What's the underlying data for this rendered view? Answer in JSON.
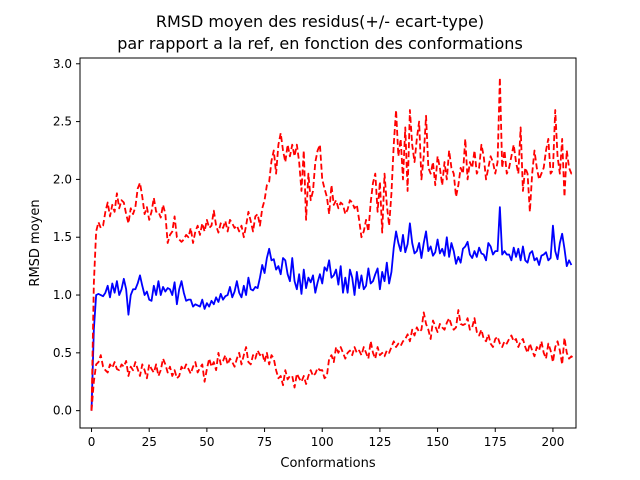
{
  "chart_data": {
    "type": "line",
    "title": [
      "RMSD moyen des residus(+/- ecart-type)",
      "par rapport a la ref, en fonction des conformations"
    ],
    "xlabel": "Conformations",
    "ylabel": "RMSD moyen",
    "xlim": [
      -5,
      210
    ],
    "ylim": [
      -0.15,
      3.05
    ],
    "xticks": [
      0,
      25,
      50,
      75,
      100,
      125,
      150,
      175,
      200
    ],
    "yticks": [
      "0.0",
      "0.5",
      "1.0",
      "1.5",
      "2.0",
      "2.5",
      "3.0"
    ],
    "grid": false,
    "x": {
      "start": 0,
      "end": 200,
      "step": 1
    },
    "series": [
      {
        "role": "mean",
        "color": "#0000ff",
        "style": "solid",
        "values": [
          0.0,
          0.7,
          1.0,
          1.01,
          1.0,
          0.99,
          1.02,
          1.08,
          0.98,
          1.1,
          1.02,
          1.12,
          1.0,
          1.05,
          1.14,
          1.05,
          0.83,
          1.0,
          1.05,
          1.05,
          1.1,
          1.17,
          1.08,
          1.0,
          1.03,
          0.96,
          0.95,
          1.08,
          1.0,
          1.12,
          1.0,
          1.07,
          1.03,
          1.06,
          1.05,
          1.0,
          1.11,
          0.92,
          1.05,
          1.12,
          1.02,
          0.95,
          0.96,
          0.96,
          0.9,
          0.92,
          0.91,
          0.9,
          0.96,
          0.88,
          0.93,
          0.9,
          0.95,
          0.92,
          0.98,
          0.94,
          1.01,
          0.96,
          0.99,
          1.0,
          1.07,
          0.98,
          1.03,
          1.12,
          1.02,
          0.98,
          1.08,
          1.0,
          1.15,
          1.05,
          1.04,
          1.07,
          1.06,
          1.15,
          1.26,
          1.19,
          1.32,
          1.4,
          1.3,
          1.31,
          1.22,
          1.25,
          1.18,
          1.32,
          1.3,
          1.18,
          1.12,
          1.32,
          1.12,
          1.05,
          1.18,
          1.01,
          1.22,
          1.06,
          1.15,
          1.11,
          1.17,
          1.02,
          1.11,
          1.18,
          1.1,
          1.24,
          1.21,
          1.3,
          1.15,
          1.17,
          1.22,
          1.09,
          1.25,
          1.02,
          1.15,
          1.02,
          1.22,
          1.15,
          1.0,
          1.2,
          1.06,
          1.17,
          1.05,
          1.08,
          1.23,
          1.1,
          1.12,
          1.18,
          1.23,
          1.05,
          1.2,
          1.12,
          1.28,
          1.1,
          1.2,
          1.41,
          1.55,
          1.45,
          1.38,
          1.52,
          1.37,
          1.44,
          1.62,
          1.45,
          1.36,
          1.38,
          1.45,
          1.32,
          1.45,
          1.55,
          1.38,
          1.42,
          1.34,
          1.37,
          1.48,
          1.36,
          1.4,
          1.34,
          1.5,
          1.33,
          1.45,
          1.38,
          1.27,
          1.33,
          1.28,
          1.4,
          1.42,
          1.46,
          1.35,
          1.32,
          1.38,
          1.33,
          1.41,
          1.36,
          1.35,
          1.3,
          1.45,
          1.42,
          1.35,
          1.38,
          1.38,
          1.76,
          1.35,
          1.38,
          1.35,
          1.35,
          1.3,
          1.41,
          1.33,
          1.4,
          1.3,
          1.42,
          1.3,
          1.28,
          1.36,
          1.38,
          1.3,
          1.32,
          1.26,
          1.34,
          1.35,
          1.37,
          1.3,
          1.32,
          1.6,
          1.38,
          1.31,
          1.45,
          1.53,
          1.4,
          1.25,
          1.3,
          1.26
        ]
      },
      {
        "role": "mean + std",
        "color": "#ff0000",
        "style": "dashed",
        "values": [
          0.0,
          1.1,
          1.55,
          1.63,
          1.58,
          1.6,
          1.72,
          1.8,
          1.68,
          1.78,
          1.72,
          1.88,
          1.75,
          1.82,
          1.8,
          1.7,
          1.62,
          1.75,
          1.7,
          1.76,
          1.92,
          1.97,
          1.85,
          1.7,
          1.76,
          1.65,
          1.72,
          1.84,
          1.72,
          1.72,
          1.67,
          1.78,
          1.7,
          1.45,
          1.52,
          1.55,
          1.68,
          1.5,
          1.48,
          1.46,
          1.48,
          1.52,
          1.5,
          1.58,
          1.45,
          1.55,
          1.6,
          1.52,
          1.62,
          1.55,
          1.65,
          1.58,
          1.6,
          1.73,
          1.6,
          1.54,
          1.62,
          1.58,
          1.64,
          1.55,
          1.65,
          1.62,
          1.58,
          1.6,
          1.55,
          1.6,
          1.5,
          1.6,
          1.72,
          1.64,
          1.55,
          1.68,
          1.7,
          1.6,
          1.75,
          1.82,
          1.95,
          1.98,
          2.16,
          2.25,
          2.05,
          2.3,
          2.4,
          2.25,
          2.15,
          2.3,
          2.2,
          2.3,
          2.2,
          2.3,
          2.15,
          1.9,
          2.25,
          1.65,
          2.05,
          1.82,
          1.9,
          2.15,
          2.25,
          2.3,
          2.0,
          1.92,
          1.85,
          1.7,
          1.95,
          1.78,
          1.82,
          1.75,
          1.8,
          1.78,
          1.7,
          1.74,
          1.82,
          1.8,
          1.75,
          1.78,
          1.65,
          1.5,
          1.55,
          1.65,
          1.55,
          1.8,
          1.97,
          2.05,
          1.72,
          1.98,
          1.54,
          2.05,
          1.78,
          1.6,
          1.88,
          2.3,
          2.6,
          2.2,
          2.35,
          2.0,
          2.45,
          1.9,
          2.6,
          2.3,
          2.15,
          2.35,
          2.5,
          2.0,
          2.2,
          2.55,
          2.1,
          2.05,
          2.15,
          1.95,
          2.2,
          2.1,
          1.95,
          2.15,
          2.0,
          2.25,
          2.1,
          2.05,
          1.85,
          1.95,
          2.1,
          2.05,
          2.35,
          2.0,
          2.15,
          2.1,
          2.25,
          2.05,
          2.1,
          2.3,
          2.2,
          2.0,
          2.1,
          2.2,
          2.15,
          2.05,
          2.15,
          2.88,
          2.1,
          2.25,
          2.05,
          2.1,
          2.2,
          2.3,
          2.15,
          2.05,
          2.45,
          1.9,
          2.1,
          2.05,
          1.72,
          2.05,
          2.25,
          2.1,
          2.0,
          2.05,
          2.1,
          2.25,
          2.35,
          2.05,
          2.08,
          2.6,
          2.2,
          2.05,
          2.35,
          1.85,
          2.25,
          2.1,
          2.05,
          2.05
        ]
      },
      {
        "role": "mean - std",
        "color": "#ff0000",
        "style": "dashed",
        "values": [
          0.0,
          0.25,
          0.4,
          0.42,
          0.48,
          0.38,
          0.35,
          0.33,
          0.4,
          0.37,
          0.42,
          0.36,
          0.35,
          0.4,
          0.38,
          0.43,
          0.3,
          0.38,
          0.35,
          0.42,
          0.36,
          0.3,
          0.4,
          0.35,
          0.28,
          0.4,
          0.36,
          0.33,
          0.4,
          0.3,
          0.35,
          0.45,
          0.4,
          0.33,
          0.38,
          0.3,
          0.35,
          0.28,
          0.3,
          0.38,
          0.35,
          0.4,
          0.36,
          0.32,
          0.38,
          0.42,
          0.33,
          0.37,
          0.4,
          0.25,
          0.36,
          0.45,
          0.38,
          0.42,
          0.35,
          0.5,
          0.4,
          0.43,
          0.48,
          0.4,
          0.45,
          0.42,
          0.38,
          0.45,
          0.5,
          0.4,
          0.48,
          0.55,
          0.42,
          0.4,
          0.48,
          0.45,
          0.52,
          0.48,
          0.5,
          0.42,
          0.5,
          0.4,
          0.48,
          0.45,
          0.35,
          0.28,
          0.3,
          0.22,
          0.35,
          0.27,
          0.3,
          0.3,
          0.2,
          0.32,
          0.28,
          0.25,
          0.3,
          0.23,
          0.3,
          0.35,
          0.3,
          0.32,
          0.37,
          0.35,
          0.35,
          0.28,
          0.3,
          0.45,
          0.48,
          0.42,
          0.55,
          0.5,
          0.55,
          0.5,
          0.45,
          0.5,
          0.52,
          0.48,
          0.55,
          0.5,
          0.52,
          0.48,
          0.55,
          0.5,
          0.45,
          0.6,
          0.5,
          0.45,
          0.55,
          0.48,
          0.5,
          0.47,
          0.52,
          0.5,
          0.55,
          0.6,
          0.55,
          0.58,
          0.56,
          0.6,
          0.62,
          0.66,
          0.6,
          0.7,
          0.65,
          0.72,
          0.68,
          0.7,
          0.85,
          0.75,
          0.7,
          0.62,
          0.78,
          0.73,
          0.68,
          0.75,
          0.72,
          0.7,
          0.76,
          0.8,
          0.74,
          0.7,
          0.72,
          0.87,
          0.75,
          0.74,
          0.75,
          0.8,
          0.7,
          0.72,
          0.8,
          0.68,
          0.65,
          0.7,
          0.62,
          0.6,
          0.66,
          0.58,
          0.55,
          0.62,
          0.64,
          0.58,
          0.55,
          0.6,
          0.58,
          0.62,
          0.65,
          0.6,
          0.62,
          0.55,
          0.6,
          0.62,
          0.55,
          0.5,
          0.58,
          0.52,
          0.47,
          0.55,
          0.52,
          0.6,
          0.5,
          0.45,
          0.58,
          0.52,
          0.42,
          0.55,
          0.6,
          0.52,
          0.4,
          0.63,
          0.5,
          0.45,
          0.47,
          0.45
        ]
      }
    ]
  }
}
